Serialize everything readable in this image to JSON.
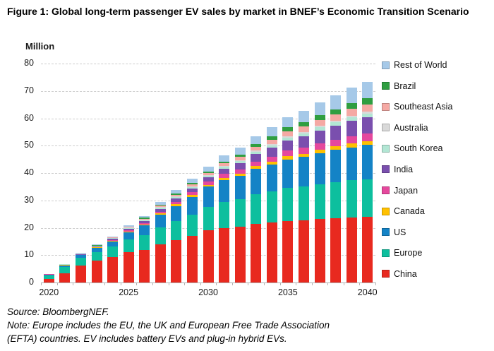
{
  "figure": {
    "title": "Figure 1: Global long-term passenger EV sales by market in BNEF’s Economic Transition Scenario",
    "unit_label": "Million",
    "source": "Source: BloombergNEF.",
    "note": "Note: Europe includes the EU, the UK and European Free Trade Association (EFTA) countries. EV includes battery EVs and plug-in hybrid EVs."
  },
  "chart_data": {
    "type": "bar",
    "stacked": true,
    "title": "Global long-term passenger EV sales by market in BNEF’s Economic Transition Scenario",
    "xlabel": "",
    "ylabel": "Million",
    "ylim": [
      0,
      80
    ],
    "yticks": [
      0,
      10,
      20,
      30,
      40,
      50,
      60,
      70,
      80
    ],
    "grid": "horizontal-dashed",
    "legend_position": "right",
    "x": [
      2020,
      2021,
      2022,
      2023,
      2024,
      2025,
      2026,
      2027,
      2028,
      2029,
      2030,
      2031,
      2032,
      2033,
      2034,
      2035,
      2036,
      2037,
      2038,
      2039,
      2040
    ],
    "xtick_labels_shown": [
      "2020",
      "2025",
      "2030",
      "2035",
      "2040"
    ],
    "stack_order_bottom_to_top": [
      "China",
      "Europe",
      "US",
      "Canada",
      "Japan",
      "India",
      "South Korea",
      "Australia",
      "Southeast Asia",
      "Brazil",
      "Rest of World"
    ],
    "legend_order_top_to_bottom": [
      "Rest of World",
      "Brazil",
      "Southeast Asia",
      "Australia",
      "South Korea",
      "India",
      "Japan",
      "Canada",
      "US",
      "Europe",
      "China"
    ],
    "series": [
      {
        "name": "China",
        "color": "#e8291f",
        "values": [
          1.2,
          3.3,
          6.3,
          7.9,
          9.3,
          11.0,
          12.0,
          14.0,
          15.5,
          17.0,
          19.0,
          20.0,
          20.5,
          21.5,
          22.0,
          22.5,
          22.8,
          23.2,
          23.5,
          23.8,
          24.0
        ]
      },
      {
        "name": "Europe",
        "color": "#0dbf9e",
        "values": [
          1.4,
          2.3,
          2.7,
          3.2,
          3.8,
          4.8,
          5.3,
          6.2,
          7.0,
          7.8,
          8.7,
          9.5,
          10.0,
          10.8,
          11.3,
          12.0,
          12.3,
          12.8,
          13.2,
          13.6,
          13.8
        ]
      },
      {
        "name": "US",
        "color": "#1483c6",
        "values": [
          0.3,
          0.7,
          1.0,
          1.5,
          2.0,
          2.6,
          3.5,
          4.5,
          5.5,
          6.5,
          7.3,
          8.0,
          8.5,
          9.3,
          9.8,
          10.5,
          10.8,
          11.3,
          11.7,
          12.0,
          12.4
        ]
      },
      {
        "name": "Canada",
        "color": "#ffc000",
        "values": [
          0.05,
          0.1,
          0.1,
          0.2,
          0.25,
          0.3,
          0.4,
          0.5,
          0.55,
          0.6,
          0.7,
          0.8,
          0.85,
          0.9,
          1.0,
          1.1,
          1.15,
          1.2,
          1.3,
          1.4,
          1.5
        ]
      },
      {
        "name": "Japan",
        "color": "#e5489d",
        "values": [
          0.03,
          0.05,
          0.1,
          0.15,
          0.25,
          0.4,
          0.5,
          0.7,
          0.9,
          1.1,
          1.2,
          1.4,
          1.5,
          1.7,
          1.9,
          2.1,
          2.2,
          2.4,
          2.5,
          2.7,
          2.8
        ]
      },
      {
        "name": "India",
        "color": "#7a4fae",
        "values": [
          0.01,
          0.05,
          0.1,
          0.2,
          0.3,
          0.5,
          0.7,
          1.0,
          1.2,
          1.4,
          1.5,
          1.9,
          2.3,
          2.8,
          3.3,
          3.8,
          4.2,
          4.7,
          5.1,
          5.6,
          6.0
        ]
      },
      {
        "name": "South Korea",
        "color": "#b2e6d4",
        "values": [
          0.05,
          0.1,
          0.15,
          0.2,
          0.25,
          0.3,
          0.4,
          0.45,
          0.5,
          0.55,
          0.6,
          0.7,
          0.75,
          0.8,
          0.9,
          1.0,
          1.05,
          1.1,
          1.2,
          1.25,
          1.3
        ]
      },
      {
        "name": "Australia",
        "color": "#d9d9d9",
        "values": [
          0.01,
          0.02,
          0.04,
          0.06,
          0.1,
          0.12,
          0.15,
          0.2,
          0.22,
          0.25,
          0.3,
          0.32,
          0.35,
          0.4,
          0.45,
          0.5,
          0.5,
          0.55,
          0.55,
          0.6,
          0.6
        ]
      },
      {
        "name": "Southeast Asia",
        "color": "#f5a9a4",
        "values": [
          0.02,
          0.05,
          0.1,
          0.15,
          0.2,
          0.3,
          0.4,
          0.5,
          0.6,
          0.65,
          0.7,
          0.9,
          1.1,
          1.3,
          1.6,
          1.8,
          2.0,
          2.2,
          2.3,
          2.5,
          2.6
        ]
      },
      {
        "name": "Brazil",
        "color": "#2f9e41",
        "values": [
          0.01,
          0.03,
          0.05,
          0.1,
          0.15,
          0.2,
          0.3,
          0.4,
          0.45,
          0.5,
          0.6,
          0.7,
          0.85,
          1.0,
          1.2,
          1.5,
          1.6,
          1.8,
          2.0,
          2.2,
          2.3
        ]
      },
      {
        "name": "Rest of World",
        "color": "#a6c9e8",
        "values": [
          0.02,
          0.05,
          0.1,
          0.2,
          0.3,
          0.5,
          0.7,
          1.0,
          1.3,
          1.5,
          1.7,
          2.2,
          2.5,
          2.9,
          3.3,
          3.7,
          4.0,
          4.5,
          5.0,
          5.5,
          6.0
        ]
      }
    ]
  }
}
